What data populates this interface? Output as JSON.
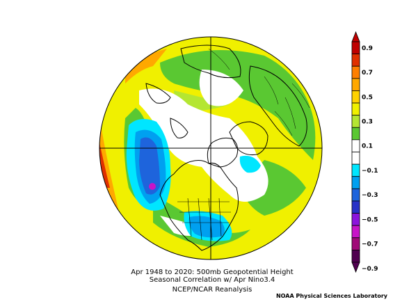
{
  "caption": {
    "line1": "Apr 1948 to 2020: 500mb Geopotential Height",
    "line2": "Seasonal Correlation w/ Apr Nino3.4",
    "line3": "NCEP/NCAR Reanalysis"
  },
  "credit": "NOAA Physical Sciences Laboratory",
  "colorbar": {
    "labels": [
      "0.9",
      "0.7",
      "0.5",
      "0.3",
      "0.1",
      "−0.1",
      "−0.3",
      "−0.5",
      "−0.7",
      "−0.9"
    ],
    "bands": [
      {
        "value": "0.9",
        "color": "#c00000"
      },
      {
        "value": "0.8",
        "color": "#e03000"
      },
      {
        "value": "0.7",
        "color": "#ff7f00"
      },
      {
        "value": "0.6",
        "color": "#ffa800"
      },
      {
        "value": "0.5",
        "color": "#ffd200"
      },
      {
        "value": "0.4",
        "color": "#f0f000"
      },
      {
        "value": "0.3",
        "color": "#b4e632"
      },
      {
        "value": "0.2",
        "color": "#5ac832"
      },
      {
        "value": "0.1",
        "color": "#ffffff"
      },
      {
        "value": "-0.1",
        "color": "#ffffff"
      },
      {
        "value": "-0.2",
        "color": "#00e6ff"
      },
      {
        "value": "-0.3",
        "color": "#00a0f0"
      },
      {
        "value": "-0.4",
        "color": "#1e64dc"
      },
      {
        "value": "-0.5",
        "color": "#2832c8"
      },
      {
        "value": "-0.6",
        "color": "#8c14dc"
      },
      {
        "value": "-0.7",
        "color": "#c814c8"
      },
      {
        "value": "-0.8",
        "color": "#a00a78"
      },
      {
        "value": "-0.9",
        "color": "#500050"
      }
    ]
  },
  "map": {
    "projection": "polar stereographic, Northern Hemisphere",
    "colors": {
      "yellow": "#f0f000",
      "green": "#5ac832",
      "lightgreen": "#b4e632",
      "orange": "#ffa800",
      "cyan": "#00e6ff",
      "blue": "#00a0f0",
      "darkblue": "#1e64dc",
      "magenta": "#c814c8",
      "white": "#ffffff"
    }
  }
}
